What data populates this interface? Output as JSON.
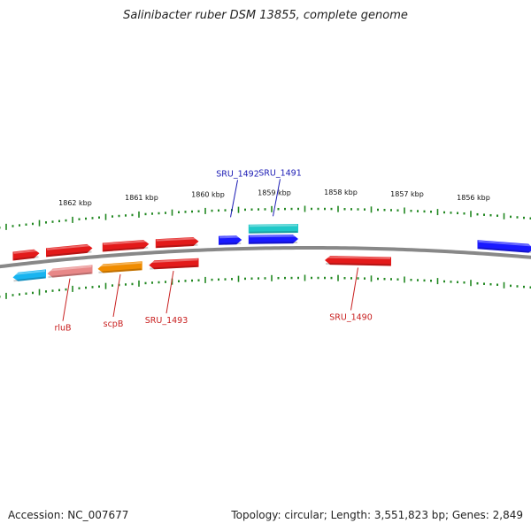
{
  "title": "Salinibacter ruber DSM 13855, complete genome",
  "footer": {
    "accession": "Accession: NC_007677",
    "summary": "Topology: circular; Length: 3,551,823 bp; Genes: 2,849"
  },
  "colors": {
    "backbone": "#888888",
    "tick": "#228822",
    "label_forward": "#1a1ab4",
    "label_reverse": "#c81e1e",
    "gene_red": "#e31a1a",
    "gene_blue": "#1a1aff",
    "gene_cyan": "#20c8c8",
    "gene_orange": "#f08c00",
    "gene_pink": "#e88888",
    "gene_skyblue": "#18b4f0"
  },
  "scale": {
    "unit": "kbp",
    "labels": [
      {
        "kbp": 1862,
        "text": "1862 kbp"
      },
      {
        "kbp": 1861,
        "text": "1861 kbp"
      },
      {
        "kbp": 1860,
        "text": "1860 kbp"
      },
      {
        "kbp": 1859,
        "text": "1859 kbp"
      },
      {
        "kbp": 1858,
        "text": "1858 kbp"
      },
      {
        "kbp": 1857,
        "text": "1857 kbp"
      },
      {
        "kbp": 1856,
        "text": "1856 kbp"
      }
    ]
  },
  "genes": [
    {
      "name": "",
      "strand": "forward",
      "start_kbp": 1862.9,
      "end_kbp": 1862.5,
      "color": "#e31a1a"
    },
    {
      "name": "",
      "strand": "forward",
      "start_kbp": 1862.4,
      "end_kbp": 1861.7,
      "color": "#e31a1a"
    },
    {
      "name": "",
      "strand": "forward",
      "start_kbp": 1861.55,
      "end_kbp": 1860.85,
      "color": "#e31a1a"
    },
    {
      "name": "",
      "strand": "forward",
      "start_kbp": 1860.75,
      "end_kbp": 1860.1,
      "color": "#e31a1a"
    },
    {
      "name": "SRU_1492",
      "strand": "forward",
      "start_kbp": 1859.8,
      "end_kbp": 1859.45,
      "color": "#1a1aff"
    },
    {
      "name": "SRU_1491",
      "strand": "forward",
      "start_kbp": 1859.35,
      "end_kbp": 1858.6,
      "color": "#20c8c8"
    },
    {
      "name": "",
      "strand": "forward",
      "start_kbp": 1859.35,
      "end_kbp": 1858.6,
      "color": "#1a1aff"
    },
    {
      "name": "",
      "strand": "forward",
      "start_kbp": 1855.9,
      "end_kbp": 1855.05,
      "color": "#1a1aff"
    },
    {
      "name": "",
      "strand": "reverse",
      "start_kbp": 1862.9,
      "end_kbp": 1862.4,
      "color": "#18b4f0"
    },
    {
      "name": "rluB",
      "strand": "reverse",
      "start_kbp": 1862.38,
      "end_kbp": 1861.7,
      "color": "#e88888"
    },
    {
      "name": "scpB",
      "strand": "reverse",
      "start_kbp": 1861.62,
      "end_kbp": 1860.95,
      "color": "#f08c00"
    },
    {
      "name": "SRU_1493",
      "strand": "reverse",
      "start_kbp": 1860.85,
      "end_kbp": 1860.1,
      "color": "#e31a1a"
    },
    {
      "name": "SRU_1490",
      "strand": "reverse",
      "start_kbp": 1858.2,
      "end_kbp": 1857.2,
      "color": "#e31a1a"
    }
  ],
  "labels": [
    {
      "text": "SRU_1492",
      "strand": "forward",
      "kbp": 1859.62
    },
    {
      "text": "SRU_1491",
      "strand": "forward",
      "kbp": 1858.98
    },
    {
      "text": "rluB",
      "strand": "reverse",
      "kbp": 1862.04
    },
    {
      "text": "scpB",
      "strand": "reverse",
      "kbp": 1861.28
    },
    {
      "text": "SRU_1493",
      "strand": "reverse",
      "kbp": 1860.48
    },
    {
      "text": "SRU_1490",
      "strand": "reverse",
      "kbp": 1857.7
    }
  ]
}
